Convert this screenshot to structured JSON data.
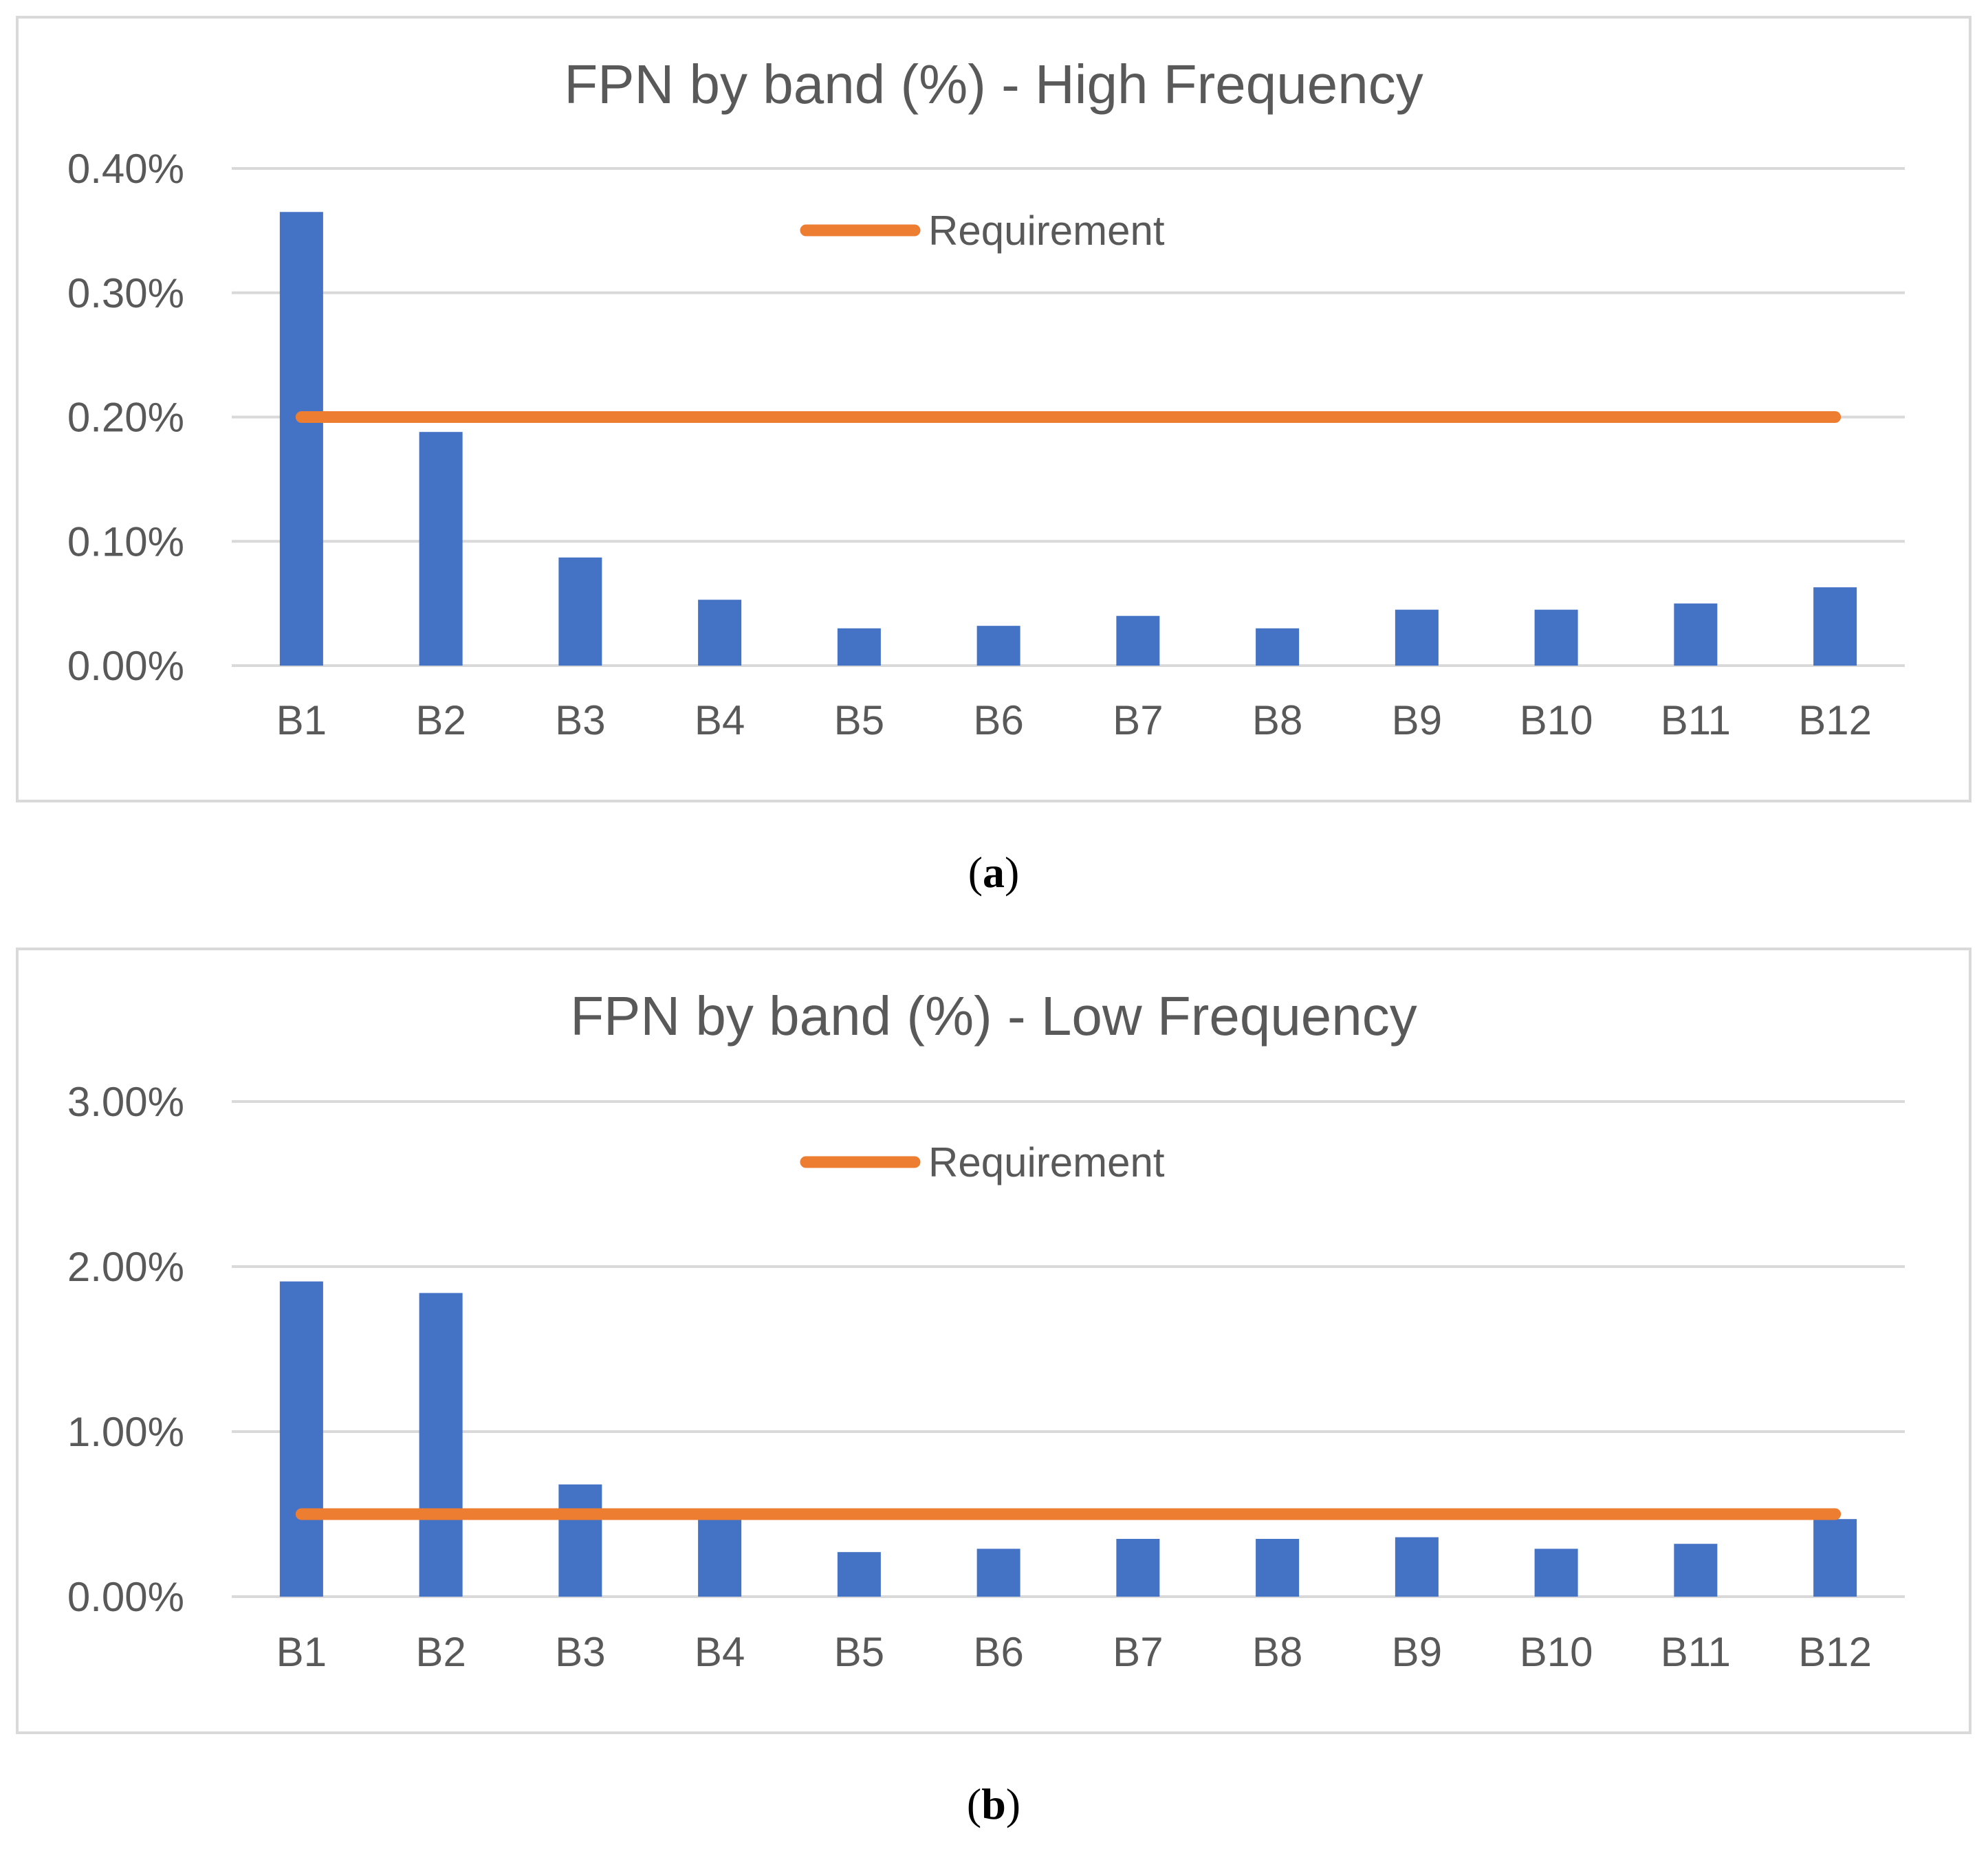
{
  "chart_data": [
    {
      "type": "bar",
      "title": "FPN by band (%) - High Frequency",
      "caption_letter": "a",
      "categories": [
        "B1",
        "B2",
        "B3",
        "B4",
        "B5",
        "B6",
        "B7",
        "B8",
        "B9",
        "B10",
        "B11",
        "B12"
      ],
      "series": [
        {
          "name": "FPN",
          "values": [
            0.365,
            0.188,
            0.087,
            0.053,
            0.03,
            0.032,
            0.04,
            0.03,
            0.045,
            0.045,
            0.05,
            0.063
          ]
        }
      ],
      "requirement": {
        "name": "Requirement",
        "value": 0.2
      },
      "ylim": [
        0,
        0.4
      ],
      "yticks": [
        0.4,
        0.3,
        0.2,
        0.1,
        0.0
      ],
      "ytick_labels": [
        "0.40%",
        "0.30%",
        "0.20%",
        "0.10%",
        "0.00%"
      ],
      "xlabel": "",
      "ylabel": "",
      "legend": "top-center",
      "grid": true
    },
    {
      "type": "bar",
      "title": "FPN by band (%) - Low Frequency",
      "caption_letter": "b",
      "categories": [
        "B1",
        "B2",
        "B3",
        "B4",
        "B5",
        "B6",
        "B7",
        "B8",
        "B9",
        "B10",
        "B11",
        "B12"
      ],
      "series": [
        {
          "name": "FPN",
          "values": [
            1.91,
            1.84,
            0.68,
            0.5,
            0.27,
            0.29,
            0.35,
            0.35,
            0.36,
            0.29,
            0.32,
            0.47
          ]
        }
      ],
      "requirement": {
        "name": "Requirement",
        "value": 0.5
      },
      "ylim": [
        0,
        3.0
      ],
      "yticks": [
        3.0,
        2.0,
        1.0,
        0.0
      ],
      "ytick_labels": [
        "3.00%",
        "2.00%",
        "1.00%",
        "0.00%"
      ],
      "xlabel": "",
      "ylabel": "",
      "legend": "top-center",
      "grid": true
    }
  ]
}
